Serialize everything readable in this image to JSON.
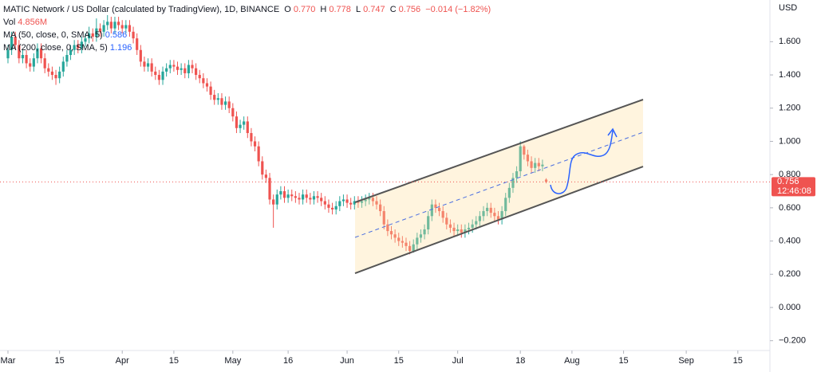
{
  "header": {
    "symbol": "MATIC Network / US Dollar (calculated by TradingView), 1D, BINANCE",
    "ohlc": [
      {
        "key": "O",
        "value": "0.770"
      },
      {
        "key": "H",
        "value": "0.778"
      },
      {
        "key": "L",
        "value": "0.747"
      },
      {
        "key": "C",
        "value": "0.756"
      }
    ],
    "change": "−0.014 (−1.82%)",
    "vol_label": "Vol",
    "vol_value": "4.856M",
    "ma": [
      {
        "label": "MA (50, close, 0, SMA, 5)",
        "value": "0.586"
      },
      {
        "label": "MA (200, close, 0, SMA, 5)",
        "value": "1.196"
      }
    ],
    "currency": "USD",
    "countdown": "12:46:08"
  },
  "chart_data": {
    "type": "candlestick",
    "up_color": "#26a69a",
    "down_color": "#ef5350",
    "grid": false,
    "ylim": [
      -0.259,
      1.851
    ],
    "yticks": [
      {
        "value": 1.6,
        "label": "1.600"
      },
      {
        "value": 1.4,
        "label": "1.400"
      },
      {
        "value": 1.2,
        "label": "1.200"
      },
      {
        "value": 1,
        "label": "1.000"
      },
      {
        "value": 0.8,
        "label": "0.800"
      },
      {
        "value": 0.6,
        "label": "0.600"
      },
      {
        "value": 0.4,
        "label": "0.400"
      },
      {
        "value": 0.2,
        "label": "0.200"
      },
      {
        "value": 0,
        "label": "0.000"
      },
      {
        "value": -0.2,
        "label": "−0.200"
      }
    ],
    "xlim": [
      -2.16,
      206.7
    ],
    "xticks": [
      {
        "value": 0,
        "label": "Mar"
      },
      {
        "value": 14,
        "label": "15"
      },
      {
        "value": 31,
        "label": "Apr"
      },
      {
        "value": 45,
        "label": "15"
      },
      {
        "value": 61,
        "label": "May"
      },
      {
        "value": 76,
        "label": "16"
      },
      {
        "value": 92,
        "label": "Jun"
      },
      {
        "value": 106,
        "label": "15"
      },
      {
        "value": 122,
        "label": "Jul"
      },
      {
        "value": 139,
        "label": "18"
      },
      {
        "value": 153,
        "label": "Aug"
      },
      {
        "value": 167,
        "label": "15"
      },
      {
        "value": 184,
        "label": "Sep"
      },
      {
        "value": 198,
        "label": "15"
      }
    ],
    "open": [
      1.5,
      1.55,
      1.63,
      1.58,
      1.5,
      1.52,
      1.47,
      1.45,
      1.5,
      1.56,
      1.5,
      1.44,
      1.42,
      1.4,
      1.38,
      1.42,
      1.48,
      1.52,
      1.55,
      1.58,
      1.56,
      1.6,
      1.62,
      1.65,
      1.63,
      1.68,
      1.66,
      1.7,
      1.72,
      1.68,
      1.72,
      1.7,
      1.68,
      1.7,
      1.66,
      1.62,
      1.55,
      1.48,
      1.45,
      1.47,
      1.42,
      1.4,
      1.37,
      1.42,
      1.44,
      1.46,
      1.45,
      1.43,
      1.44,
      1.41,
      1.46,
      1.44,
      1.4,
      1.38,
      1.35,
      1.33,
      1.28,
      1.25,
      1.26,
      1.22,
      1.24,
      1.2,
      1.15,
      1.08,
      1.1,
      1.12,
      1.05,
      1.0,
      0.97,
      0.88,
      0.8,
      0.78,
      0.65,
      0.62,
      0.68,
      0.7,
      0.66,
      0.68,
      0.67,
      0.66,
      0.65,
      0.68,
      0.66,
      0.65,
      0.67,
      0.66,
      0.64,
      0.62,
      0.6,
      0.59,
      0.61,
      0.64,
      0.65,
      0.63,
      0.62,
      0.64,
      0.63,
      0.64,
      0.65,
      0.66,
      0.64,
      0.62,
      0.58,
      0.5,
      0.46,
      0.44,
      0.42,
      0.4,
      0.39,
      0.37,
      0.34,
      0.38,
      0.42,
      0.44,
      0.47,
      0.55,
      0.62,
      0.6,
      0.58,
      0.54,
      0.5,
      0.48,
      0.46,
      0.47,
      0.45,
      0.47,
      0.48,
      0.5,
      0.52,
      0.55,
      0.58,
      0.6,
      0.57,
      0.55,
      0.53,
      0.58,
      0.66,
      0.72,
      0.78,
      0.82,
      0.97,
      0.92,
      0.88,
      0.84,
      0.87,
      0.85,
      0.77
    ],
    "high": [
      1.58,
      1.66,
      1.66,
      1.61,
      1.55,
      1.55,
      1.5,
      1.53,
      1.59,
      1.59,
      1.53,
      1.47,
      1.45,
      1.43,
      1.45,
      1.51,
      1.55,
      1.58,
      1.61,
      1.61,
      1.63,
      1.65,
      1.69,
      1.68,
      1.74,
      1.71,
      1.73,
      1.76,
      1.75,
      1.75,
      1.75,
      1.73,
      1.73,
      1.73,
      1.69,
      1.65,
      1.58,
      1.51,
      1.5,
      1.5,
      1.45,
      1.43,
      1.45,
      1.47,
      1.49,
      1.49,
      1.48,
      1.47,
      1.47,
      1.49,
      1.49,
      1.47,
      1.43,
      1.41,
      1.38,
      1.36,
      1.31,
      1.29,
      1.29,
      1.27,
      1.27,
      1.23,
      1.18,
      1.13,
      1.15,
      1.15,
      1.08,
      1.03,
      1.0,
      0.91,
      0.83,
      0.81,
      0.68,
      0.71,
      0.73,
      0.73,
      0.71,
      0.71,
      0.7,
      0.69,
      0.71,
      0.71,
      0.69,
      0.7,
      0.7,
      0.69,
      0.67,
      0.65,
      0.63,
      0.64,
      0.67,
      0.68,
      0.68,
      0.66,
      0.67,
      0.67,
      0.67,
      0.68,
      0.69,
      0.69,
      0.67,
      0.65,
      0.61,
      0.53,
      0.49,
      0.47,
      0.45,
      0.43,
      0.42,
      0.4,
      0.41,
      0.45,
      0.47,
      0.5,
      0.58,
      0.65,
      0.65,
      0.63,
      0.61,
      0.57,
      0.53,
      0.51,
      0.5,
      0.5,
      0.5,
      0.51,
      0.53,
      0.55,
      0.58,
      0.61,
      0.63,
      0.63,
      0.6,
      0.58,
      0.61,
      0.69,
      0.75,
      0.81,
      0.85,
      1.0,
      0.98,
      0.95,
      0.91,
      0.9,
      0.9,
      0.89,
      0.778
    ],
    "low": [
      1.47,
      1.52,
      1.55,
      1.47,
      1.47,
      1.44,
      1.42,
      1.42,
      1.47,
      1.47,
      1.41,
      1.39,
      1.37,
      1.34,
      1.35,
      1.39,
      1.45,
      1.49,
      1.52,
      1.53,
      1.53,
      1.57,
      1.59,
      1.6,
      1.6,
      1.63,
      1.63,
      1.67,
      1.65,
      1.65,
      1.67,
      1.65,
      1.65,
      1.63,
      1.59,
      1.52,
      1.45,
      1.42,
      1.42,
      1.39,
      1.37,
      1.34,
      1.34,
      1.39,
      1.41,
      1.42,
      1.4,
      1.4,
      1.38,
      1.38,
      1.41,
      1.37,
      1.35,
      1.32,
      1.3,
      1.25,
      1.22,
      1.22,
      1.19,
      1.19,
      1.17,
      1.12,
      1.05,
      1.05,
      1.07,
      1.02,
      0.97,
      0.94,
      0.85,
      0.77,
      0.75,
      0.62,
      0.48,
      0.59,
      0.65,
      0.63,
      0.63,
      0.64,
      0.63,
      0.62,
      0.62,
      0.63,
      0.62,
      0.62,
      0.63,
      0.61,
      0.59,
      0.57,
      0.56,
      0.56,
      0.58,
      0.61,
      0.6,
      0.59,
      0.59,
      0.6,
      0.6,
      0.61,
      0.62,
      0.61,
      0.59,
      0.55,
      0.47,
      0.43,
      0.41,
      0.39,
      0.37,
      0.36,
      0.34,
      0.32,
      0.33,
      0.35,
      0.39,
      0.41,
      0.44,
      0.52,
      0.57,
      0.55,
      0.51,
      0.47,
      0.45,
      0.43,
      0.43,
      0.42,
      0.42,
      0.44,
      0.45,
      0.47,
      0.49,
      0.52,
      0.55,
      0.54,
      0.52,
      0.5,
      0.5,
      0.55,
      0.63,
      0.69,
      0.75,
      0.79,
      0.89,
      0.85,
      0.81,
      0.81,
      0.82,
      0.82,
      0.747
    ],
    "close": [
      1.55,
      1.63,
      1.58,
      1.5,
      1.52,
      1.47,
      1.45,
      1.5,
      1.56,
      1.5,
      1.44,
      1.42,
      1.4,
      1.38,
      1.42,
      1.48,
      1.52,
      1.55,
      1.58,
      1.56,
      1.6,
      1.62,
      1.65,
      1.63,
      1.68,
      1.66,
      1.7,
      1.72,
      1.68,
      1.72,
      1.7,
      1.68,
      1.7,
      1.66,
      1.62,
      1.55,
      1.48,
      1.45,
      1.47,
      1.42,
      1.4,
      1.37,
      1.42,
      1.44,
      1.46,
      1.45,
      1.43,
      1.44,
      1.41,
      1.46,
      1.44,
      1.4,
      1.38,
      1.35,
      1.33,
      1.28,
      1.25,
      1.26,
      1.22,
      1.24,
      1.2,
      1.15,
      1.08,
      1.1,
      1.12,
      1.05,
      1.0,
      0.97,
      0.88,
      0.8,
      0.78,
      0.65,
      0.62,
      0.68,
      0.7,
      0.66,
      0.68,
      0.67,
      0.66,
      0.65,
      0.68,
      0.66,
      0.65,
      0.67,
      0.66,
      0.64,
      0.62,
      0.6,
      0.59,
      0.61,
      0.64,
      0.65,
      0.63,
      0.62,
      0.64,
      0.63,
      0.64,
      0.65,
      0.66,
      0.64,
      0.62,
      0.58,
      0.5,
      0.46,
      0.44,
      0.42,
      0.4,
      0.39,
      0.37,
      0.34,
      0.38,
      0.42,
      0.44,
      0.47,
      0.55,
      0.62,
      0.6,
      0.58,
      0.54,
      0.5,
      0.48,
      0.46,
      0.47,
      0.45,
      0.47,
      0.48,
      0.5,
      0.52,
      0.55,
      0.58,
      0.6,
      0.57,
      0.55,
      0.53,
      0.58,
      0.66,
      0.72,
      0.78,
      0.82,
      0.97,
      0.92,
      0.88,
      0.84,
      0.87,
      0.85,
      0.86,
      0.756
    ]
  }
}
